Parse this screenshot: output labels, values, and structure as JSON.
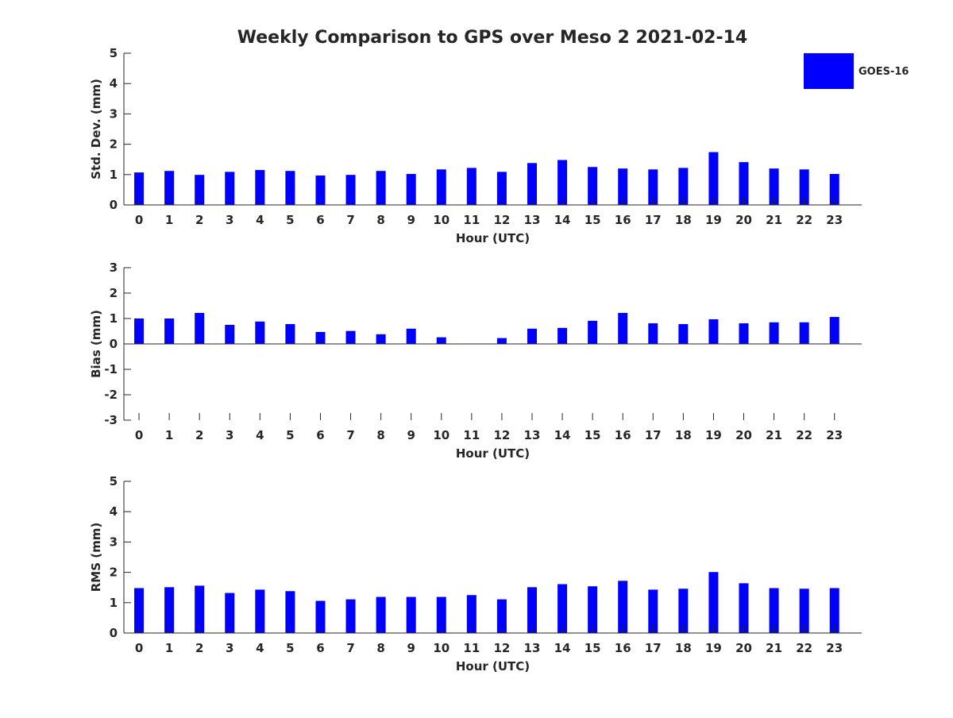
{
  "title": "Weekly Comparison to GPS over Meso 2 2021-02-14",
  "legend": {
    "label": "GOES-16",
    "color": "#0000ff",
    "placement": "top-right"
  },
  "chart_data": [
    {
      "type": "bar",
      "title": "Weekly Comparison to GPS over Meso 2 2021-02-14",
      "xlabel": "Hour (UTC)",
      "ylabel": "Std. Dev. (mm)",
      "ylim": [
        0,
        5
      ],
      "yticks": [
        "0",
        "1",
        "2",
        "3",
        "4",
        "5"
      ],
      "categories": [
        "0",
        "1",
        "2",
        "3",
        "4",
        "5",
        "6",
        "7",
        "8",
        "9",
        "10",
        "11",
        "12",
        "13",
        "14",
        "15",
        "16",
        "17",
        "18",
        "19",
        "20",
        "21",
        "22",
        "23"
      ],
      "series": [
        {
          "name": "GOES-16",
          "values": [
            1.07,
            1.12,
            0.99,
            1.09,
            1.15,
            1.12,
            0.97,
            0.99,
            1.12,
            1.02,
            1.17,
            1.22,
            1.09,
            1.38,
            1.48,
            1.25,
            1.2,
            1.17,
            1.22,
            1.74,
            1.41,
            1.2,
            1.17,
            1.02
          ]
        }
      ]
    },
    {
      "type": "bar",
      "xlabel": "Hour (UTC)",
      "ylabel": "Bias (mm)",
      "ylim": [
        -3,
        3
      ],
      "yticks": [
        "-3",
        "-2",
        "-1",
        "0",
        "1",
        "2",
        "3"
      ],
      "categories": [
        "0",
        "1",
        "2",
        "3",
        "4",
        "5",
        "6",
        "7",
        "8",
        "9",
        "10",
        "11",
        "12",
        "13",
        "14",
        "15",
        "16",
        "17",
        "18",
        "19",
        "20",
        "21",
        "22",
        "23"
      ],
      "series": [
        {
          "name": "GOES-16",
          "values": [
            1.0,
            1.0,
            1.22,
            0.75,
            0.88,
            0.78,
            0.47,
            0.51,
            0.38,
            0.6,
            0.26,
            0.0,
            0.23,
            0.6,
            0.63,
            0.91,
            1.22,
            0.81,
            0.78,
            0.97,
            0.81,
            0.85,
            0.85,
            1.06
          ]
        }
      ]
    },
    {
      "type": "bar",
      "xlabel": "Hour (UTC)",
      "ylabel": "RMS (mm)",
      "ylim": [
        0,
        5
      ],
      "yticks": [
        "0",
        "1",
        "2",
        "3",
        "4",
        "5"
      ],
      "categories": [
        "0",
        "1",
        "2",
        "3",
        "4",
        "5",
        "6",
        "7",
        "8",
        "9",
        "10",
        "11",
        "12",
        "13",
        "14",
        "15",
        "16",
        "17",
        "18",
        "19",
        "20",
        "21",
        "22",
        "23"
      ],
      "series": [
        {
          "name": "GOES-16",
          "values": [
            1.48,
            1.51,
            1.56,
            1.32,
            1.43,
            1.38,
            1.06,
            1.11,
            1.19,
            1.19,
            1.19,
            1.25,
            1.11,
            1.51,
            1.61,
            1.54,
            1.72,
            1.43,
            1.46,
            2.01,
            1.64,
            1.48,
            1.46,
            1.48
          ]
        }
      ]
    }
  ]
}
